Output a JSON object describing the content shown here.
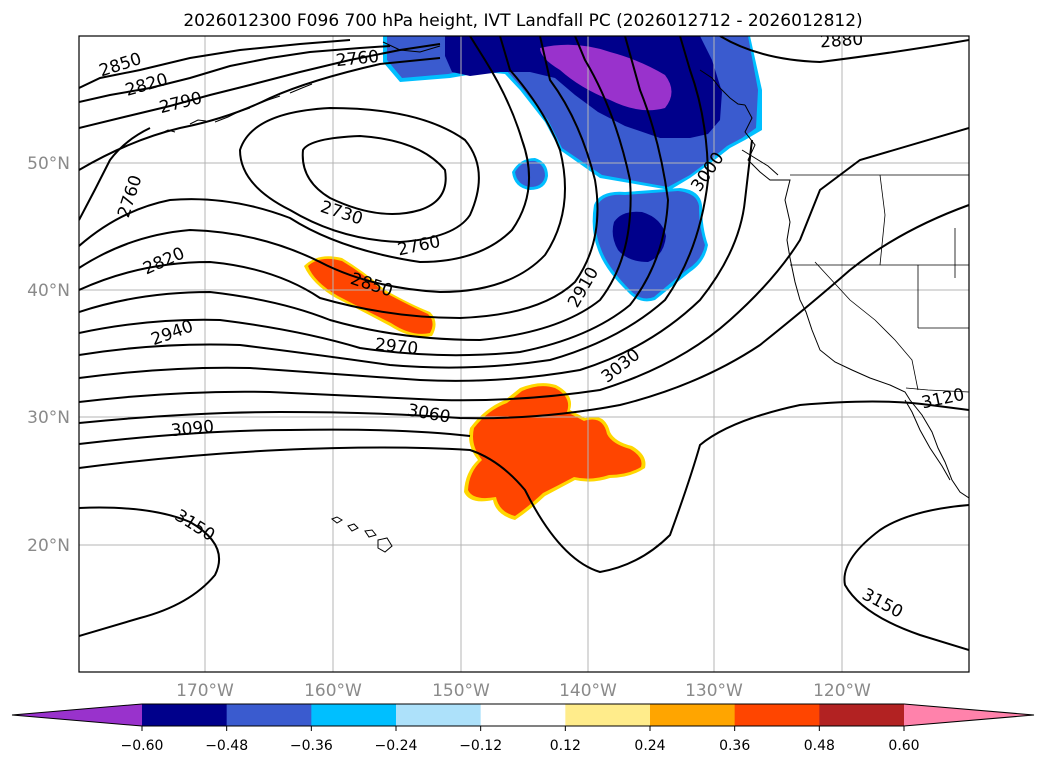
{
  "title": "2026012300 F096 700 hPa height, IVT Landfall PC (2026012712 - 2026012812)",
  "latitude_labels": [
    "50°N",
    "40°N",
    "30°N",
    "20°N"
  ],
  "longitude_labels": [
    "170°W",
    "160°W",
    "150°W",
    "140°W",
    "130°W",
    "120°W"
  ],
  "contour_labels": [
    "2850",
    "2820",
    "2790",
    "2760",
    "2730",
    "2760",
    "2820",
    "2850",
    "2940",
    "2970",
    "2910",
    "3000",
    "3030",
    "3060",
    "3090",
    "3150",
    "3150",
    "3120",
    "2760",
    "2880"
  ],
  "colorbar": {
    "tick_labels": [
      "−0.60",
      "−0.48",
      "−0.36",
      "−0.24",
      "−0.12",
      "0.12",
      "0.24",
      "0.36",
      "0.48",
      "0.60"
    ],
    "colors": [
      "#9932CC",
      "#00008B",
      "#3A5BCF",
      "#00BFFF",
      "#ADE1FA",
      "#FFFFFF",
      "#FFEC8B",
      "#FFA500",
      "#FF4500",
      "#B22222",
      "#FF82AB"
    ]
  },
  "colors": {
    "height_contour": "#000000",
    "orange_anomaly": "#FF4500",
    "orange_outline": "#FFD700",
    "purple_core": "#9932CC",
    "navy": "#00008B",
    "blue": "#3A5BCF",
    "cyan_outline": "#00BFFF",
    "grid": "#b4b4b4"
  }
}
